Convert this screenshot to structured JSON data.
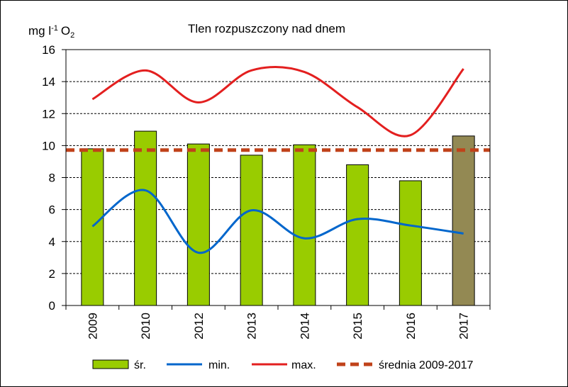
{
  "chart_data": {
    "type": "bar",
    "title": "Tlen rozpuszczony nad dnem",
    "ylabel_parts": {
      "base": "mg l",
      "sup": "-1",
      "unit": "O",
      "sub": "2"
    },
    "categories": [
      "2009",
      "2010",
      "2012",
      "2013",
      "2014",
      "2015",
      "2016",
      "2017"
    ],
    "ylim": [
      0,
      16
    ],
    "yticks": [
      0,
      2,
      4,
      6,
      8,
      10,
      12,
      14,
      16
    ],
    "grid": true,
    "legend_position": "bottom",
    "series": [
      {
        "name": "śr.",
        "kind": "bar",
        "values": [
          9.8,
          10.9,
          10.1,
          9.4,
          10.05,
          8.8,
          7.8,
          10.6
        ],
        "color": "#99cc00",
        "last_color": "#938953"
      },
      {
        "name": "min.",
        "kind": "line",
        "values": [
          4.95,
          7.2,
          3.3,
          5.95,
          4.2,
          5.4,
          5.0,
          4.5
        ],
        "color": "#0066cc"
      },
      {
        "name": "max.",
        "kind": "line",
        "values": [
          12.9,
          14.7,
          12.7,
          14.7,
          14.6,
          12.4,
          10.65,
          14.8
        ],
        "color": "#e31f1f"
      },
      {
        "name": "średnia 2009-2017",
        "kind": "hline",
        "value": 9.72,
        "color": "#c0421a"
      }
    ]
  }
}
